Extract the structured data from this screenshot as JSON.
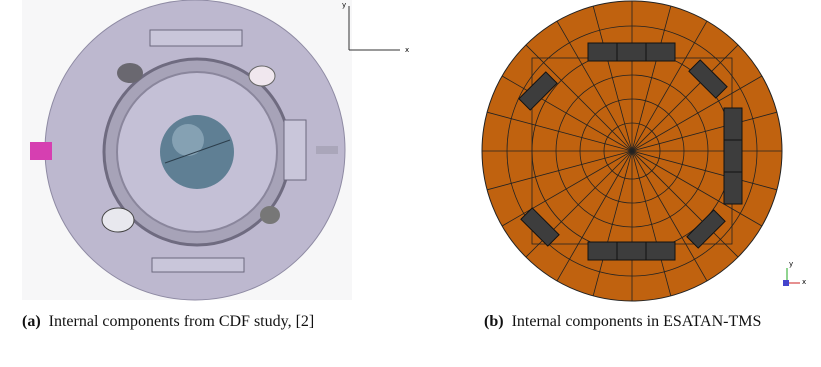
{
  "figure": {
    "panels": [
      {
        "axis_y": "y",
        "axis_x": "x",
        "caption_label": "(a)",
        "caption_text": "Internal components from CDF study, [2]"
      },
      {
        "axis_y": "y",
        "axis_x": "x",
        "caption_label": "(b)",
        "caption_text": "Internal components in ESATAN-TMS"
      }
    ]
  }
}
